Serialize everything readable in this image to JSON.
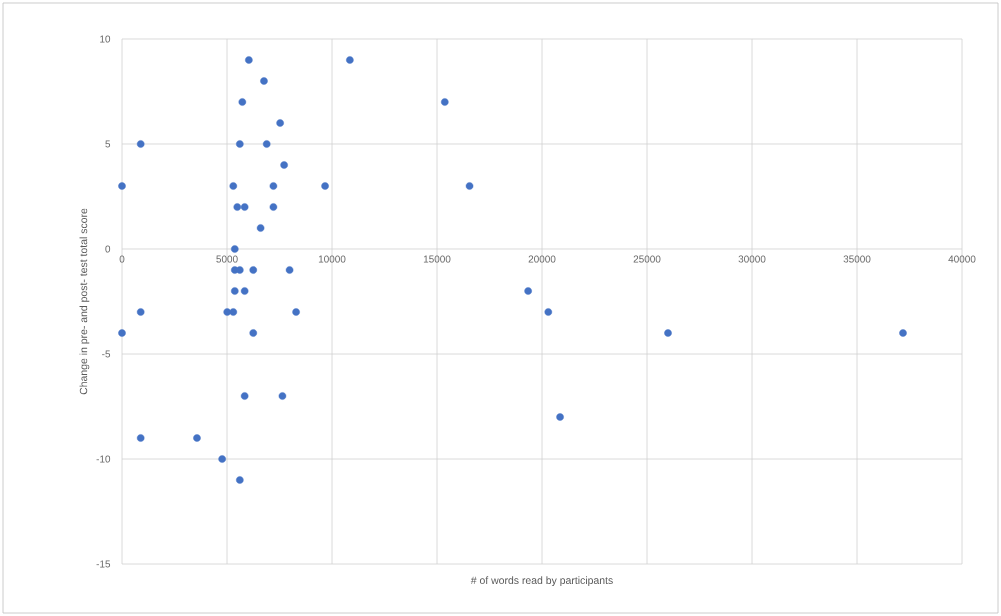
{
  "chart_data": {
    "type": "scatter",
    "xlabel": "# of words read by participants",
    "ylabel": "Change in pre- and post- test total score",
    "x": [
      6040,
      6760,
      5730,
      7530,
      890,
      5610,
      6890,
      7720,
      0,
      5300,
      7210,
      9670,
      5490,
      5840,
      7210,
      6600,
      5370,
      10850,
      5370,
      5610,
      6250,
      7980,
      5370,
      5840,
      890,
      5010,
      5300,
      8290,
      0,
      6250,
      5840,
      7640,
      890,
      3570,
      4770,
      5610,
      15370,
      16550,
      19340,
      20300,
      26000,
      37190,
      20860
    ],
    "values": [
      9,
      8,
      7,
      6,
      5,
      5,
      5,
      4,
      3,
      3,
      3,
      3,
      2,
      2,
      2,
      1,
      0,
      9,
      -1,
      -1,
      -1,
      -1,
      -2,
      -2,
      -3,
      -3,
      -3,
      -3,
      -4,
      -4,
      -7,
      -7,
      -9,
      -9,
      -10,
      -11,
      7,
      3,
      -2,
      -3,
      -4,
      -4,
      -8
    ],
    "color": "#4472c4",
    "marker": "circle",
    "grid": true,
    "xlim": [
      0,
      40000
    ],
    "ylim": [
      -15,
      10
    ],
    "xticks": [
      0,
      5000,
      10000,
      15000,
      20000,
      25000,
      30000,
      35000,
      40000
    ],
    "yticks": [
      -15,
      -10,
      -5,
      0,
      5,
      10
    ]
  }
}
